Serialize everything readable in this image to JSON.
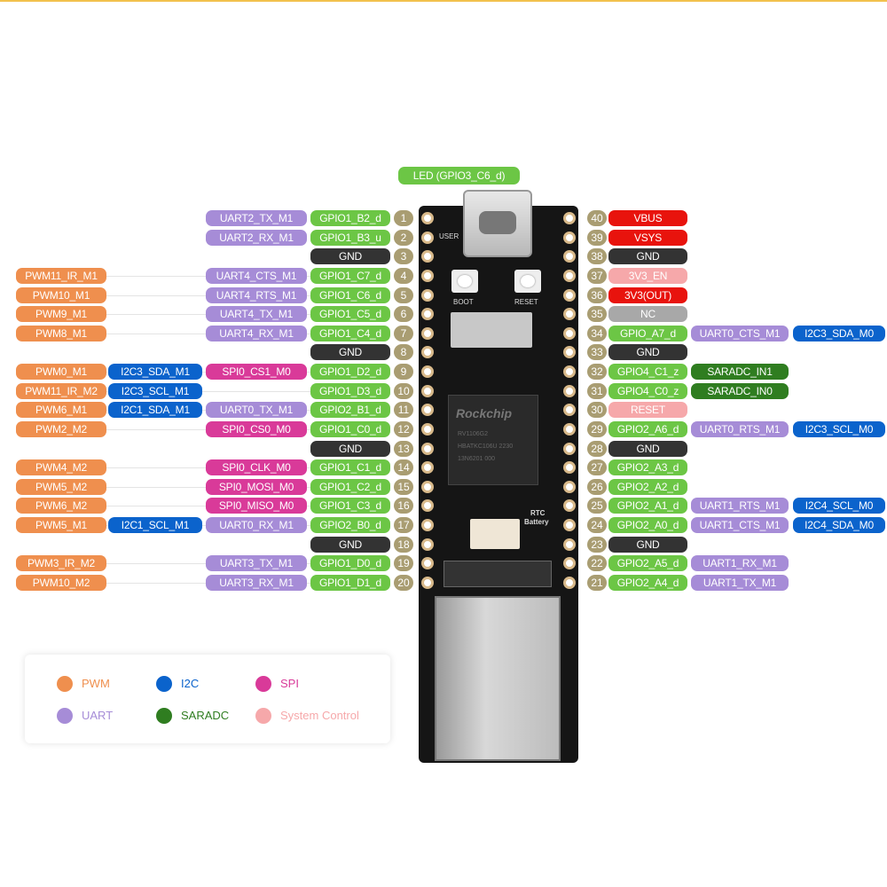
{
  "colors": {
    "PWM": "#ef8f4e",
    "I2C": "#0b63cc",
    "SPI": "#d93a99",
    "UART": "#a68cd7",
    "GPIO": "#6cc645",
    "GND": "#333333",
    "POWER": "#e8130d",
    "SYS": "#f6a8aa",
    "NC": "#a8a8a8",
    "SARADC": "#2f7d20",
    "PIN": "#a99d72"
  },
  "led_label": "LED (GPIO3_C6_d)",
  "board": {
    "boot": "BOOT",
    "reset": "RESET",
    "brand": "Rockchip",
    "chip_line1": "RV1106G2",
    "chip_line2": "HBATKC106U 2230",
    "chip_line3": "13N6201 000",
    "rtc": "RTC",
    "battery": "Battery",
    "user": "USER"
  },
  "left_pins": [
    {
      "num": "1",
      "gpio": "GPIO1_B2_d",
      "func": "UART2_TX_M1",
      "func_type": "UART"
    },
    {
      "num": "2",
      "gpio": "GPIO1_B3_u",
      "func": "UART2_RX_M1",
      "func_type": "UART"
    },
    {
      "num": "3",
      "gpio": "GND",
      "gpio_type": "GND"
    },
    {
      "num": "4",
      "gpio": "GPIO1_C7_d",
      "func": "UART4_CTS_M1",
      "func_type": "UART",
      "pwm": "PWM11_IR_M1"
    },
    {
      "num": "5",
      "gpio": "GPIO1_C6_d",
      "func": "UART4_RTS_M1",
      "func_type": "UART",
      "pwm": "PWM10_M1"
    },
    {
      "num": "6",
      "gpio": "GPIO1_C5_d",
      "func": "UART4_TX_M1",
      "func_type": "UART",
      "pwm": "PWM9_M1"
    },
    {
      "num": "7",
      "gpio": "GPIO1_C4_d",
      "func": "UART4_RX_M1",
      "func_type": "UART",
      "pwm": "PWM8_M1"
    },
    {
      "num": "8",
      "gpio": "GND",
      "gpio_type": "GND"
    },
    {
      "num": "9",
      "gpio": "GPIO1_D2_d",
      "func": "SPI0_CS1_M0",
      "func_type": "SPI",
      "i2c": "I2C3_SDA_M1",
      "pwm": "PWM0_M1"
    },
    {
      "num": "10",
      "gpio": "GPIO1_D3_d",
      "i2c": "I2C3_SCL_M1",
      "pwm": "PWM11_IR_M2"
    },
    {
      "num": "11",
      "gpio": "GPIO2_B1_d",
      "func": "UART0_TX_M1",
      "func_type": "UART",
      "i2c": "I2C1_SDA_M1",
      "pwm": "PWM6_M1"
    },
    {
      "num": "12",
      "gpio": "GPIO1_C0_d",
      "func": "SPI0_CS0_M0",
      "func_type": "SPI",
      "pwm": "PWM2_M2"
    },
    {
      "num": "13",
      "gpio": "GND",
      "gpio_type": "GND"
    },
    {
      "num": "14",
      "gpio": "GPIO1_C1_d",
      "func": "SPI0_CLK_M0",
      "func_type": "SPI",
      "pwm": "PWM4_M2"
    },
    {
      "num": "15",
      "gpio": "GPIO1_C2_d",
      "func": "SPI0_MOSI_M0",
      "func_type": "SPI",
      "pwm": "PWM5_M2"
    },
    {
      "num": "16",
      "gpio": "GPIO1_C3_d",
      "func": "SPI0_MISO_M0",
      "func_type": "SPI",
      "pwm": "PWM6_M2"
    },
    {
      "num": "17",
      "gpio": "GPIO2_B0_d",
      "func": "UART0_RX_M1",
      "func_type": "UART",
      "i2c": "I2C1_SCL_M1",
      "pwm": "PWM5_M1"
    },
    {
      "num": "18",
      "gpio": "GND",
      "gpio_type": "GND"
    },
    {
      "num": "19",
      "gpio": "GPIO1_D0_d",
      "func": "UART3_TX_M1",
      "func_type": "UART",
      "pwm": "PWM3_IR_M2"
    },
    {
      "num": "20",
      "gpio": "GPIO1_D1_d",
      "func": "UART3_RX_M1",
      "func_type": "UART",
      "pwm": "PWM10_M2"
    }
  ],
  "right_pins": [
    {
      "num": "40",
      "gpio": "VBUS",
      "gpio_type": "POWER"
    },
    {
      "num": "39",
      "gpio": "VSYS",
      "gpio_type": "POWER"
    },
    {
      "num": "38",
      "gpio": "GND",
      "gpio_type": "GND"
    },
    {
      "num": "37",
      "gpio": "3V3_EN",
      "gpio_type": "SYS"
    },
    {
      "num": "36",
      "gpio": "3V3(OUT)",
      "gpio_type": "POWER"
    },
    {
      "num": "35",
      "gpio": "NC",
      "gpio_type": "NC"
    },
    {
      "num": "34",
      "gpio": "GPIO_A7_d",
      "func": "UART0_CTS_M1",
      "func_type": "UART",
      "extra": "I2C3_SDA_M0",
      "extra_type": "I2C"
    },
    {
      "num": "33",
      "gpio": "GND",
      "gpio_type": "GND"
    },
    {
      "num": "32",
      "gpio": "GPIO4_C1_z",
      "func": "SARADC_IN1",
      "func_type": "SARADC"
    },
    {
      "num": "31",
      "gpio": "GPIO4_C0_z",
      "func": "SARADC_IN0",
      "func_type": "SARADC"
    },
    {
      "num": "30",
      "gpio": "RESET",
      "gpio_type": "SYS"
    },
    {
      "num": "29",
      "gpio": "GPIO2_A6_d",
      "func": "UART0_RTS_M1",
      "func_type": "UART",
      "extra": "I2C3_SCL_M0",
      "extra_type": "I2C"
    },
    {
      "num": "28",
      "gpio": "GND",
      "gpio_type": "GND"
    },
    {
      "num": "27",
      "gpio": "GPIO2_A3_d"
    },
    {
      "num": "26",
      "gpio": "GPIO2_A2_d"
    },
    {
      "num": "25",
      "gpio": "GPIO2_A1_d",
      "func": "UART1_RTS_M1",
      "func_type": "UART",
      "extra": "I2C4_SCL_M0",
      "extra_type": "I2C"
    },
    {
      "num": "24",
      "gpio": "GPIO2_A0_d",
      "func": "UART1_CTS_M1",
      "func_type": "UART",
      "extra": "I2C4_SDA_M0",
      "extra_type": "I2C"
    },
    {
      "num": "23",
      "gpio": "GND",
      "gpio_type": "GND"
    },
    {
      "num": "22",
      "gpio": "GPIO2_A5_d",
      "func": "UART1_RX_M1",
      "func_type": "UART"
    },
    {
      "num": "21",
      "gpio": "GPIO2_A4_d",
      "func": "UART1_TX_M1",
      "func_type": "UART"
    }
  ],
  "legend": [
    {
      "label": "PWM",
      "type": "PWM"
    },
    {
      "label": "I2C",
      "type": "I2C"
    },
    {
      "label": "SPI",
      "type": "SPI"
    },
    {
      "label": "UART",
      "type": "UART"
    },
    {
      "label": "SARADC",
      "type": "SARADC"
    },
    {
      "label": "System Control",
      "type": "SYS"
    }
  ]
}
